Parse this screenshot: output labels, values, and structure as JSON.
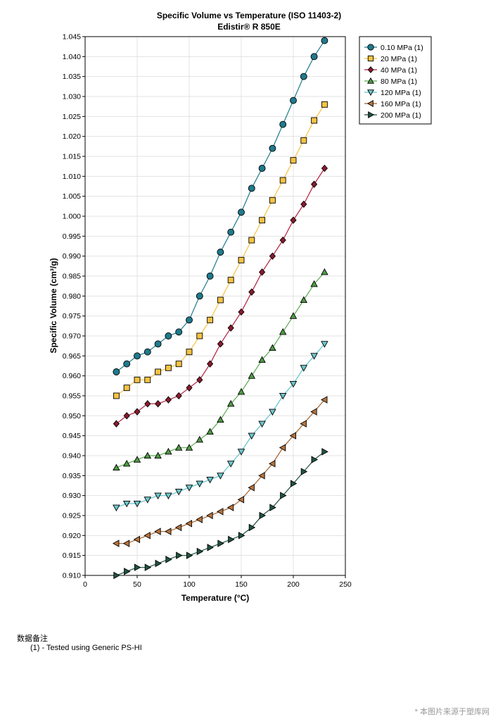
{
  "chart_data": {
    "type": "line",
    "title": "Specific Volume vs Temperature (ISO 11403-2)",
    "subtitle": "Edistir® R 850E",
    "xlabel": "Temperature (°C)",
    "ylabel": "Specific Volume (cm³/g)",
    "xlim": [
      0,
      250
    ],
    "ylim": [
      0.91,
      1.045
    ],
    "xticks": [
      "0",
      "50",
      "100",
      "150",
      "200",
      "250"
    ],
    "yticks": [
      "0.910",
      "0.915",
      "0.920",
      "0.925",
      "0.930",
      "0.935",
      "0.940",
      "0.945",
      "0.950",
      "0.955",
      "0.960",
      "0.965",
      "0.970",
      "0.975",
      "0.980",
      "0.985",
      "0.990",
      "0.995",
      "1.000",
      "1.005",
      "1.010",
      "1.015",
      "1.020",
      "1.025",
      "1.030",
      "1.035",
      "1.040",
      "1.045"
    ],
    "grid": true,
    "legend_position": "outside-top-right",
    "x": [
      30,
      40,
      50,
      60,
      70,
      80,
      90,
      100,
      110,
      120,
      130,
      140,
      150,
      160,
      170,
      180,
      190,
      200,
      210,
      220,
      230
    ],
    "series": [
      {
        "name": "0.10 MPa (1)",
        "color": "#1f7a8c",
        "fill": "#1f7a8c",
        "marker": "circle",
        "values": [
          0.961,
          0.963,
          0.965,
          0.966,
          0.968,
          0.97,
          0.971,
          0.974,
          0.98,
          0.985,
          0.991,
          0.996,
          1.001,
          1.007,
          1.012,
          1.017,
          1.023,
          1.029,
          1.035,
          1.04,
          1.044
        ]
      },
      {
        "name": "20 MPa (1)",
        "color": "#f5c342",
        "fill": "#f5c342",
        "marker": "square",
        "values": [
          0.955,
          0.957,
          0.959,
          0.959,
          0.961,
          0.962,
          0.963,
          0.966,
          0.97,
          0.974,
          0.979,
          0.984,
          0.989,
          0.994,
          0.999,
          1.004,
          1.009,
          1.014,
          1.019,
          1.024,
          1.028
        ]
      },
      {
        "name": "40 MPa (1)",
        "color": "#b01e3c",
        "fill": "#8b1a2e",
        "marker": "diamond",
        "values": [
          0.948,
          0.95,
          0.951,
          0.953,
          0.953,
          0.954,
          0.955,
          0.957,
          0.959,
          0.963,
          0.968,
          0.972,
          0.976,
          0.981,
          0.986,
          0.99,
          0.994,
          0.999,
          1.003,
          1.008,
          1.012
        ]
      },
      {
        "name": "80 MPa (1)",
        "color": "#5aaa50",
        "fill": "#4f9a45",
        "marker": "triangle-up",
        "values": [
          0.937,
          0.938,
          0.939,
          0.94,
          0.94,
          0.941,
          0.942,
          0.942,
          0.944,
          0.946,
          0.949,
          0.953,
          0.956,
          0.96,
          0.964,
          0.967,
          0.971,
          0.975,
          0.979,
          0.983,
          0.986
        ]
      },
      {
        "name": "120 MPa (1)",
        "color": "#5fc3c8",
        "fill": "#6cc6cc",
        "marker": "triangle-down",
        "values": [
          0.927,
          0.928,
          0.928,
          0.929,
          0.93,
          0.93,
          0.931,
          0.932,
          0.933,
          0.934,
          0.935,
          0.938,
          0.941,
          0.945,
          0.948,
          0.951,
          0.955,
          0.958,
          0.962,
          0.965,
          0.968
        ]
      },
      {
        "name": "160 MPa (1)",
        "color": "#a0622d",
        "fill": "#b8733a",
        "marker": "triangle-left",
        "values": [
          0.918,
          0.918,
          0.919,
          0.92,
          0.921,
          0.921,
          0.922,
          0.923,
          0.924,
          0.925,
          0.926,
          0.927,
          0.929,
          0.932,
          0.935,
          0.938,
          0.942,
          0.945,
          0.948,
          0.951,
          0.954
        ]
      },
      {
        "name": "200 MPa (1)",
        "color": "#1e4a3a",
        "fill": "#1f5540",
        "marker": "triangle-right",
        "values": [
          0.91,
          0.911,
          0.912,
          0.912,
          0.913,
          0.914,
          0.915,
          0.915,
          0.916,
          0.917,
          0.918,
          0.919,
          0.92,
          0.922,
          0.925,
          0.927,
          0.93,
          0.933,
          0.936,
          0.939,
          0.941
        ]
      }
    ]
  },
  "notes": {
    "title": "数据备注",
    "line": "(1) - Tested using Generic PS-HI"
  },
  "watermark": "* 本图片来源于塑库网"
}
